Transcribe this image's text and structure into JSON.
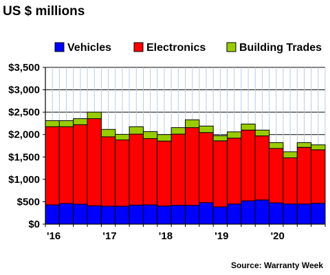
{
  "chart_data": {
    "type": "bar",
    "stacked": true,
    "title": "US $ millions",
    "source": "Source: Warranty Week",
    "legend_position": "top",
    "grid": true,
    "ylim": [
      0,
      3500
    ],
    "yticks": [
      {
        "value": 0,
        "label": "$0"
      },
      {
        "value": 500,
        "label": "$500"
      },
      {
        "value": 1000,
        "label": "$1,000"
      },
      {
        "value": 1500,
        "label": "$1,500"
      },
      {
        "value": 2000,
        "label": "$2,000"
      },
      {
        "value": 2500,
        "label": "$2,500"
      },
      {
        "value": 3000,
        "label": "$3,000"
      },
      {
        "value": 3500,
        "label": "$3,500"
      }
    ],
    "xticks": [
      {
        "label": "'16",
        "index": 0
      },
      {
        "label": "'17",
        "index": 4
      },
      {
        "label": "'18",
        "index": 8
      },
      {
        "label": "'19",
        "index": 12
      },
      {
        "label": "'20",
        "index": 16
      }
    ],
    "categories": [
      "16Q1",
      "16Q2",
      "16Q3",
      "16Q4",
      "17Q1",
      "17Q2",
      "17Q3",
      "17Q4",
      "18Q1",
      "18Q2",
      "18Q3",
      "18Q4",
      "19Q1",
      "19Q2",
      "19Q3",
      "19Q4",
      "20Q1",
      "20Q2",
      "20Q3",
      "20Q4"
    ],
    "series": [
      {
        "name": "Vehicles",
        "color": "#0000ff",
        "values": [
          430,
          460,
          445,
          410,
          400,
          400,
          425,
          430,
          405,
          420,
          420,
          480,
          385,
          450,
          520,
          540,
          475,
          450,
          450,
          465
        ]
      },
      {
        "name": "Electronics",
        "color": "#ff0000",
        "values": [
          1745,
          1715,
          1775,
          1945,
          1550,
          1480,
          1585,
          1480,
          1450,
          1590,
          1735,
          1565,
          1475,
          1470,
          1580,
          1430,
          1215,
          1030,
          1265,
          1195
        ]
      },
      {
        "name": "Building Trades",
        "color": "#99cc00",
        "values": [
          135,
          135,
          135,
          145,
          165,
          125,
          165,
          155,
          145,
          145,
          175,
          145,
          115,
          140,
          135,
          130,
          130,
          135,
          105,
          110
        ]
      }
    ]
  }
}
